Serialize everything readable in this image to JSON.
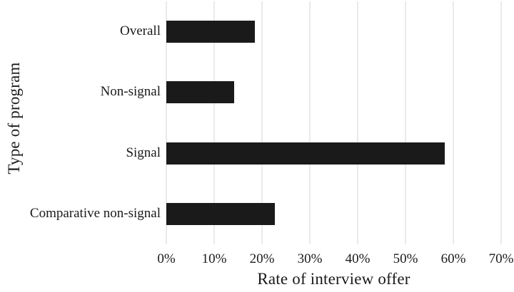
{
  "chart_data": {
    "type": "bar",
    "orientation": "horizontal",
    "title": "",
    "xlabel": "Rate of interview offer",
    "ylabel": "Type of program",
    "categories": [
      "Overall",
      "Non-signal",
      "Signal",
      "Comparative non-signal"
    ],
    "values": [
      18.5,
      14.2,
      58.2,
      22.7
    ],
    "value_unit": "%",
    "xlim": [
      0,
      70
    ],
    "x_tick_step": 10,
    "x_tick_labels": [
      "0%",
      "10%",
      "20%",
      "30%",
      "40%",
      "50%",
      "60%",
      "70%"
    ],
    "grid": "vertical-gridlines-on",
    "legend": "none",
    "colors": {
      "bar_fill": "#1a1a1a",
      "gridline": "#d6d6d6",
      "text": "#1a1a1a",
      "background": "#ffffff"
    }
  }
}
